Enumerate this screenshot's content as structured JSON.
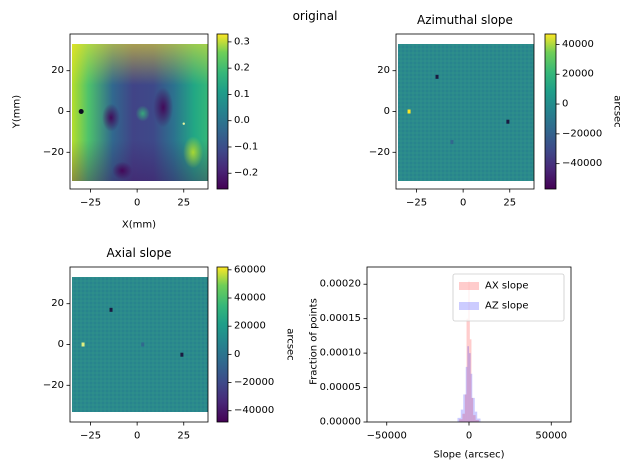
{
  "figure_title": "original",
  "chart_data": [
    {
      "type": "heatmap",
      "title": "",
      "xlabel": "X(mm)",
      "ylabel": "Y(mm)",
      "xlim": [
        -36,
        38
      ],
      "ylim": [
        -38,
        38
      ],
      "xticks": [
        -25,
        0,
        25
      ],
      "yticks": [
        20,
        0,
        -20
      ],
      "xtick_labels": [
        "−25",
        "0",
        "25"
      ],
      "ytick_labels": [
        "20",
        "0",
        "−20"
      ],
      "colorbar": {
        "range": [
          -0.26,
          0.33
        ],
        "ticks": [
          0.3,
          0.2,
          0.1,
          0.0,
          -0.1,
          -0.2
        ],
        "tick_labels": [
          "0.3",
          "0.2",
          "0.1",
          "0.0",
          "−0.1",
          "−0.2"
        ],
        "label": "",
        "colormap": "viridis"
      }
    },
    {
      "type": "heatmap",
      "title": "Azimuthal slope",
      "xlabel": "",
      "ylabel": "",
      "xlim": [
        -36,
        38
      ],
      "ylim": [
        -38,
        38
      ],
      "xticks": [
        -25,
        0,
        25
      ],
      "yticks": [
        20,
        0,
        -20
      ],
      "xtick_labels": [
        "−25",
        "0",
        "25"
      ],
      "ytick_labels": [
        "20",
        "0",
        "−20"
      ],
      "colorbar": {
        "range": [
          -57000,
          47000
        ],
        "ticks": [
          40000,
          20000,
          0,
          -20000,
          -40000
        ],
        "tick_labels": [
          "40000",
          "20000",
          "0",
          "−20000",
          "−40000"
        ],
        "label": "arcsec",
        "colormap": "viridis"
      }
    },
    {
      "type": "heatmap",
      "title": "Axial slope",
      "xlabel": "",
      "ylabel": "",
      "xlim": [
        -36,
        38
      ],
      "ylim": [
        -38,
        38
      ],
      "xticks": [
        -25,
        0,
        25
      ],
      "yticks": [
        20,
        0,
        -20
      ],
      "xtick_labels": [
        "−25",
        "0",
        "25"
      ],
      "ytick_labels": [
        "20",
        "0",
        "−20"
      ],
      "colorbar": {
        "range": [
          -48000,
          62000
        ],
        "ticks": [
          60000,
          40000,
          20000,
          0,
          -20000,
          -40000
        ],
        "tick_labels": [
          "60000",
          "40000",
          "20000",
          "0",
          "−20000",
          "−40000"
        ],
        "label": "arcsec",
        "colormap": "viridis"
      }
    },
    {
      "type": "histogram",
      "title": "",
      "xlabel": "Slope (arcsec)",
      "ylabel": "Fraction of points",
      "xlim": [
        -62000,
        62000
      ],
      "ylim": [
        0,
        0.000225
      ],
      "xticks": [
        -50000,
        0,
        50000
      ],
      "xtick_labels": [
        "−50000",
        "0",
        "50000"
      ],
      "yticks": [
        0,
        5e-05,
        0.0001,
        0.00015,
        0.0002
      ],
      "ytick_labels": [
        "0.00000",
        "0.00005",
        "0.00010",
        "0.00015",
        "0.00020"
      ],
      "legend_position": "top-right",
      "series": [
        {
          "name": "AX slope",
          "color": "#ff0000",
          "alpha": 0.2,
          "bins": [
            {
              "x0": -6000,
              "x1": -4000,
              "y": 4e-06
            },
            {
              "x0": -4000,
              "x1": -2500,
              "y": 1.2e-05
            },
            {
              "x0": -2500,
              "x1": -1500,
              "y": 4e-05
            },
            {
              "x0": -1500,
              "x1": -500,
              "y": 0.00015
            },
            {
              "x0": -500,
              "x1": 500,
              "y": 0.000205
            },
            {
              "x0": 500,
              "x1": 1500,
              "y": 0.00012
            },
            {
              "x0": 1500,
              "x1": 2500,
              "y": 3.5e-05
            },
            {
              "x0": 2500,
              "x1": 4000,
              "y": 1e-05
            },
            {
              "x0": 4000,
              "x1": 6000,
              "y": 3e-06
            }
          ]
        },
        {
          "name": "AZ slope",
          "color": "#0000ff",
          "alpha": 0.2,
          "bins": [
            {
              "x0": -7000,
              "x1": -5000,
              "y": 6e-06
            },
            {
              "x0": -5000,
              "x1": -3500,
              "y": 1.8e-05
            },
            {
              "x0": -3500,
              "x1": -2000,
              "y": 4e-05
            },
            {
              "x0": -2000,
              "x1": -1000,
              "y": 8e-05
            },
            {
              "x0": -1000,
              "x1": 0,
              "y": 0.00011
            },
            {
              "x0": 0,
              "x1": 1000,
              "y": 0.0001
            },
            {
              "x0": 1000,
              "x1": 2000,
              "y": 7e-05
            },
            {
              "x0": 2000,
              "x1": 3500,
              "y": 3.5e-05
            },
            {
              "x0": 3500,
              "x1": 5000,
              "y": 1.5e-05
            },
            {
              "x0": 5000,
              "x1": 7000,
              "y": 5e-06
            }
          ]
        }
      ]
    }
  ]
}
